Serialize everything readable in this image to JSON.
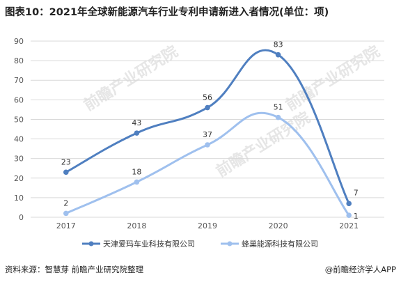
{
  "title": "图表10：2021年全球新能源汽车行业专利申请新进入者情况(单位：项)",
  "watermark": "前瞻产业研究院",
  "footer": {
    "source": "资料来源：智慧芽 前瞻产业研究院整理",
    "brand": "@前瞻经济学人APP"
  },
  "colors": {
    "series1": "#4f7fc0",
    "series2": "#9fc0ee",
    "grid": "#d9d9d9"
  },
  "chart_data": {
    "type": "line",
    "title": "图表10：2021年全球新能源汽车行业专利申请新进入者情况(单位：项)",
    "categories": [
      "2017",
      "2018",
      "2019",
      "2020",
      "2021"
    ],
    "ylim": [
      0,
      90
    ],
    "yticks": [
      0,
      10,
      20,
      30,
      40,
      50,
      60,
      70,
      80,
      90
    ],
    "grid": true,
    "smooth": true,
    "legend_position": "bottom",
    "series": [
      {
        "name": "天津爱玛车业科技有限公司",
        "values": [
          23,
          43,
          56,
          83,
          7
        ]
      },
      {
        "name": "蜂巢能源科技有限公司",
        "values": [
          2,
          18,
          37,
          51,
          1
        ]
      }
    ]
  }
}
